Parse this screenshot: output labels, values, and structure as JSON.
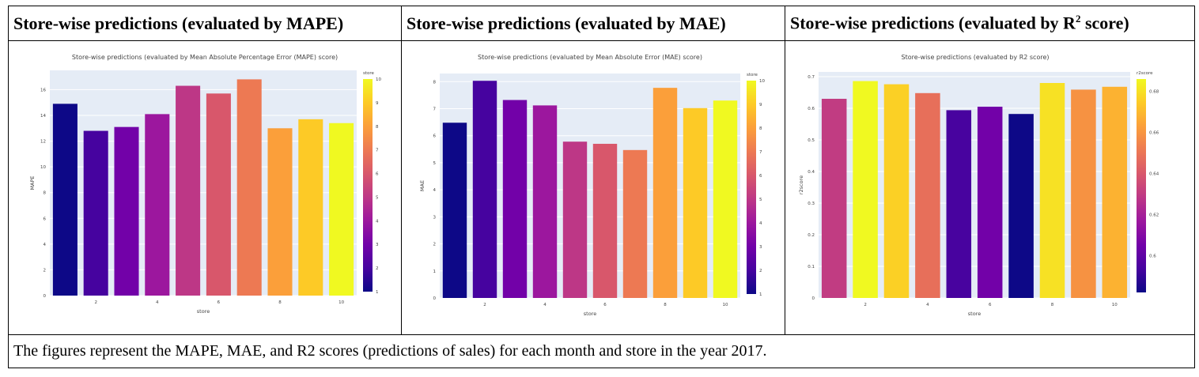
{
  "headers": {
    "mape": "Store-wise predictions (evaluated by MAPE)",
    "mae": "Store-wise predictions (evaluated by MAE)",
    "r2_pre": "Store-wise predictions (evaluated by R",
    "r2_sup": "2",
    "r2_post": " score)"
  },
  "caption": "The figures represent the MAPE, MAE, and R2 scores (predictions of sales) for each month and store in the year 2017.",
  "colors": {
    "plot_bg": "#e5ecf6",
    "grid": "#ffffff",
    "colorscale": [
      "#0d0887",
      "#46039f",
      "#7201a8",
      "#9c179e",
      "#bd3786",
      "#d8576b",
      "#ed7953",
      "#fb9f3a",
      "#fdca26",
      "#f0f921"
    ]
  },
  "chart_data": [
    {
      "id": "mape",
      "type": "bar",
      "title": "Store-wise predictions (evaluated by Mean Absolute Percentage Error (MAPE) score)",
      "xlabel": "store",
      "ylabel": "MAPE",
      "x": [
        1,
        2,
        3,
        4,
        5,
        6,
        7,
        8,
        9,
        10
      ],
      "values": [
        14.9,
        12.8,
        13.1,
        14.1,
        16.3,
        15.7,
        16.8,
        13.0,
        13.7,
        13.4
      ],
      "ylim": [
        0,
        17.5
      ],
      "yticks": [
        0,
        2,
        4,
        6,
        8,
        10,
        12,
        14,
        16
      ],
      "xticks": [
        2,
        4,
        6,
        8,
        10
      ],
      "colorbar": {
        "title": "store",
        "range": [
          1,
          10
        ],
        "ticks": [
          1,
          2,
          3,
          4,
          5,
          6,
          7,
          8,
          9,
          10
        ]
      },
      "color_by": "x",
      "grid": true
    },
    {
      "id": "mae",
      "type": "bar",
      "title": "Store-wise predictions (evaluated by Mean Absolute Error (MAE) score)",
      "xlabel": "store",
      "ylabel": "MAE",
      "x": [
        1,
        2,
        3,
        4,
        5,
        6,
        7,
        8,
        9,
        10
      ],
      "values": [
        6.48,
        8.03,
        7.32,
        7.12,
        5.78,
        5.7,
        5.47,
        7.77,
        7.02,
        7.3
      ],
      "ylim": [
        0,
        8.3
      ],
      "yticks": [
        0,
        1,
        2,
        3,
        4,
        5,
        6,
        7,
        8
      ],
      "xticks": [
        2,
        4,
        6,
        8,
        10
      ],
      "colorbar": {
        "title": "store",
        "range": [
          1,
          10
        ],
        "ticks": [
          1,
          2,
          3,
          4,
          5,
          6,
          7,
          8,
          9,
          10
        ]
      },
      "color_by": "x",
      "grid": true
    },
    {
      "id": "r2",
      "type": "bar",
      "title": "Store-wise predictions (evaluated by R2 score)",
      "xlabel": "store",
      "ylabel": "r2score",
      "x": [
        1,
        2,
        3,
        4,
        5,
        6,
        7,
        8,
        9,
        10
      ],
      "values": [
        0.63,
        0.686,
        0.676,
        0.648,
        0.594,
        0.605,
        0.582,
        0.68,
        0.659,
        0.668
      ],
      "ylim": [
        0,
        0.715
      ],
      "yticks": [
        0,
        0.1,
        0.2,
        0.3,
        0.4,
        0.5,
        0.6,
        0.7
      ],
      "xticks": [
        2,
        4,
        6,
        8,
        10
      ],
      "colorbar": {
        "title": "r2score",
        "range": [
          0.582,
          0.686
        ],
        "ticks": [
          0.6,
          0.62,
          0.64,
          0.66,
          0.68
        ]
      },
      "color_by": "y",
      "grid": true
    }
  ]
}
